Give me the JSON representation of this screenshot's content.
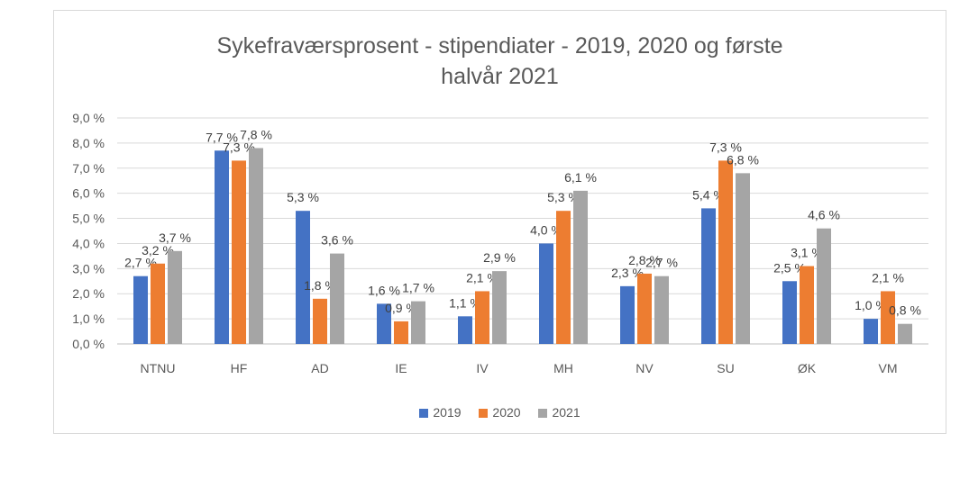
{
  "chart_data": {
    "type": "bar",
    "title_lines": [
      "Sykefraværsprosent - stipendiater - 2019, 2020 og første",
      "halvår 2021"
    ],
    "categories": [
      "NTNU",
      "HF",
      "AD",
      "IE",
      "IV",
      "MH",
      "NV",
      "SU",
      "ØK",
      "VM"
    ],
    "series": [
      {
        "name": "2019",
        "color": "#4472c4",
        "values": [
          2.7,
          7.7,
          5.3,
          1.6,
          1.1,
          4.0,
          2.3,
          5.4,
          2.5,
          1.0
        ],
        "labels": [
          "2,7 %",
          "7,7 %",
          "5,3 %",
          "1,6 %",
          "1,1 %",
          "4,0 %",
          "2,3 %",
          "5,4 %",
          "2,5 %",
          "1,0 %"
        ]
      },
      {
        "name": "2020",
        "color": "#ed7d31",
        "values": [
          3.2,
          7.3,
          1.8,
          0.9,
          2.1,
          5.3,
          2.8,
          7.3,
          3.1,
          2.1
        ],
        "labels": [
          "3,2 %",
          "7,3 %",
          "1,8 %",
          "0,9 %",
          "2,1 %",
          "5,3 %",
          "2,8 %",
          "7,3 %",
          "3,1 %",
          "2,1 %"
        ]
      },
      {
        "name": "2021",
        "color": "#a5a5a5",
        "values": [
          3.7,
          7.8,
          3.6,
          1.7,
          2.9,
          6.1,
          2.7,
          6.8,
          4.6,
          0.8
        ],
        "labels": [
          "3,7 %",
          "7,8 %",
          "3,6 %",
          "1,7 %",
          "2,9 %",
          "6,1 %",
          "2,7 %",
          "6,8 %",
          "4,6 %",
          "0,8 %"
        ]
      }
    ],
    "ylim": [
      0,
      9
    ],
    "yticks": [
      0,
      1,
      2,
      3,
      4,
      5,
      6,
      7,
      8,
      9
    ],
    "ytick_labels": [
      "0,0 %",
      "1,0 %",
      "2,0 %",
      "3,0 %",
      "4,0 %",
      "5,0 %",
      "6,0 %",
      "7,0 %",
      "8,0 %",
      "9,0 %"
    ],
    "grid": true,
    "legend_position": "bottom"
  }
}
